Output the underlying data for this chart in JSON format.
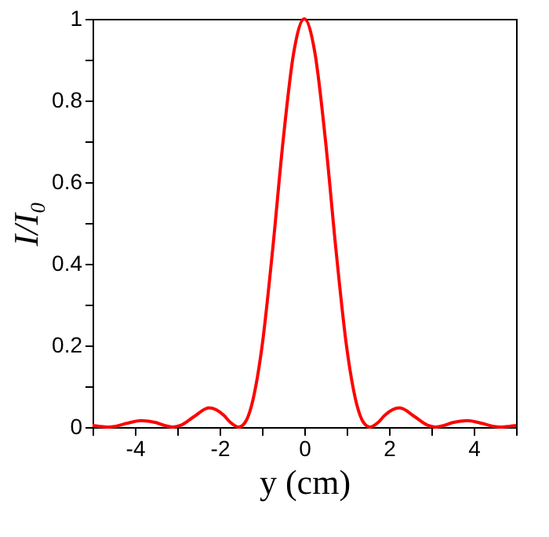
{
  "chart_data": {
    "type": "line",
    "xlabel": "y (cm)",
    "ylabel": "I/I₀",
    "x": [
      -5,
      -4.85,
      -4.65,
      -4.45,
      -4.2,
      -3.85,
      -3.5,
      -3.3,
      -3.1,
      -2.9,
      -2.6,
      -2.25,
      -1.9,
      -1.75,
      -1.55,
      -1.4,
      -1.25,
      -1.0,
      -0.75,
      -0.5,
      -0.25,
      0,
      0.25,
      0.5,
      0.75,
      1.0,
      1.25,
      1.4,
      1.55,
      1.75,
      1.9,
      2.25,
      2.6,
      2.9,
      3.1,
      3.3,
      3.5,
      3.85,
      4.2,
      4.45,
      4.65,
      4.85,
      5
    ],
    "series": [
      {
        "color": "#ff0000",
        "values": [
          0.004,
          0.002,
          0,
          0.002,
          0.009,
          0.016,
          0.011,
          0.004,
          0,
          0.005,
          0.026,
          0.047,
          0.029,
          0.012,
          0,
          0.011,
          0.051,
          0.196,
          0.432,
          0.702,
          0.917,
          1,
          0.917,
          0.702,
          0.432,
          0.196,
          0.051,
          0.011,
          0,
          0.012,
          0.029,
          0.047,
          0.026,
          0.005,
          0,
          0.004,
          0.011,
          0.016,
          0.009,
          0.002,
          0,
          0.002,
          0.004
        ]
      }
    ],
    "xlim": [
      -5,
      5
    ],
    "ylim": [
      0,
      1
    ],
    "xticks": [
      {
        "value": -5,
        "label": null
      },
      -4,
      {
        "value": -3,
        "label": null
      },
      -2,
      {
        "value": -1,
        "label": null
      },
      0,
      {
        "value": 1,
        "label": null
      },
      2,
      {
        "value": 3,
        "label": null
      },
      4,
      {
        "value": 5,
        "label": null
      }
    ],
    "yticks": [
      0,
      {
        "value": 0.1,
        "label": null
      },
      0.2,
      {
        "value": 0.3,
        "label": null
      },
      0.4,
      {
        "value": 0.5,
        "label": null
      },
      0.6,
      {
        "value": 0.7,
        "label": null
      },
      0.8,
      {
        "value": 0.9,
        "label": null
      },
      1
    ],
    "grid": false,
    "marker": "none",
    "line_style": "solid"
  }
}
